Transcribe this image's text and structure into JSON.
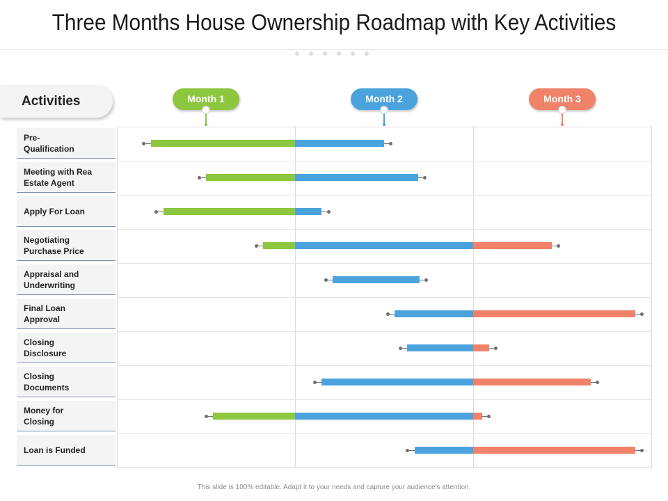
{
  "title": "Three Months House Ownership Roadmap with Key Activities",
  "activities_header": "Activities",
  "footer": "This slide is 100% editable. Adapt it to your needs and capture your audience's attention.",
  "colors": {
    "month_1": "#8dc63f",
    "month_2": "#4ba3de",
    "month_3": "#f0826a",
    "grid": "#dcdcdc",
    "whisker": "#707070"
  },
  "chart_data": {
    "type": "gantt",
    "time_unit": "month",
    "xlim": [
      0,
      3
    ],
    "months": [
      "Month 1",
      "Month 2",
      "Month 3"
    ],
    "activities": [
      {
        "label": "Pre-\nQualification",
        "start": 0.19,
        "end": 1.5,
        "whisker_start": 0.15,
        "whisker_end": 1.54
      },
      {
        "label": "Meeting with Rea\nEstate Agent",
        "start": 0.5,
        "end": 1.69,
        "whisker_start": 0.46,
        "whisker_end": 1.73
      },
      {
        "label": "Apply For Loan",
        "start": 0.26,
        "end": 1.15,
        "whisker_start": 0.22,
        "whisker_end": 1.19
      },
      {
        "label": "Negotiating\nPurchase Price",
        "start": 0.82,
        "end": 2.44,
        "whisker_start": 0.78,
        "whisker_end": 2.48
      },
      {
        "label": "Appraisal and\nUnderwriting",
        "start": 1.21,
        "end": 1.7,
        "whisker_start": 1.17,
        "whisker_end": 1.74
      },
      {
        "label": "Final Loan\nApproval",
        "start": 1.56,
        "end": 2.91,
        "whisker_start": 1.52,
        "whisker_end": 2.95
      },
      {
        "label": "Closing\nDisclosure",
        "start": 1.63,
        "end": 2.09,
        "whisker_start": 1.59,
        "whisker_end": 2.13
      },
      {
        "label": "Closing\nDocuments",
        "start": 1.15,
        "end": 2.66,
        "whisker_start": 1.11,
        "whisker_end": 2.7
      },
      {
        "label": "Money for\nClosing",
        "start": 0.54,
        "end": 2.05,
        "whisker_start": 0.5,
        "whisker_end": 2.09
      },
      {
        "label": "Loan is Funded",
        "start": 1.67,
        "end": 2.91,
        "whisker_start": 1.63,
        "whisker_end": 2.95
      }
    ]
  }
}
